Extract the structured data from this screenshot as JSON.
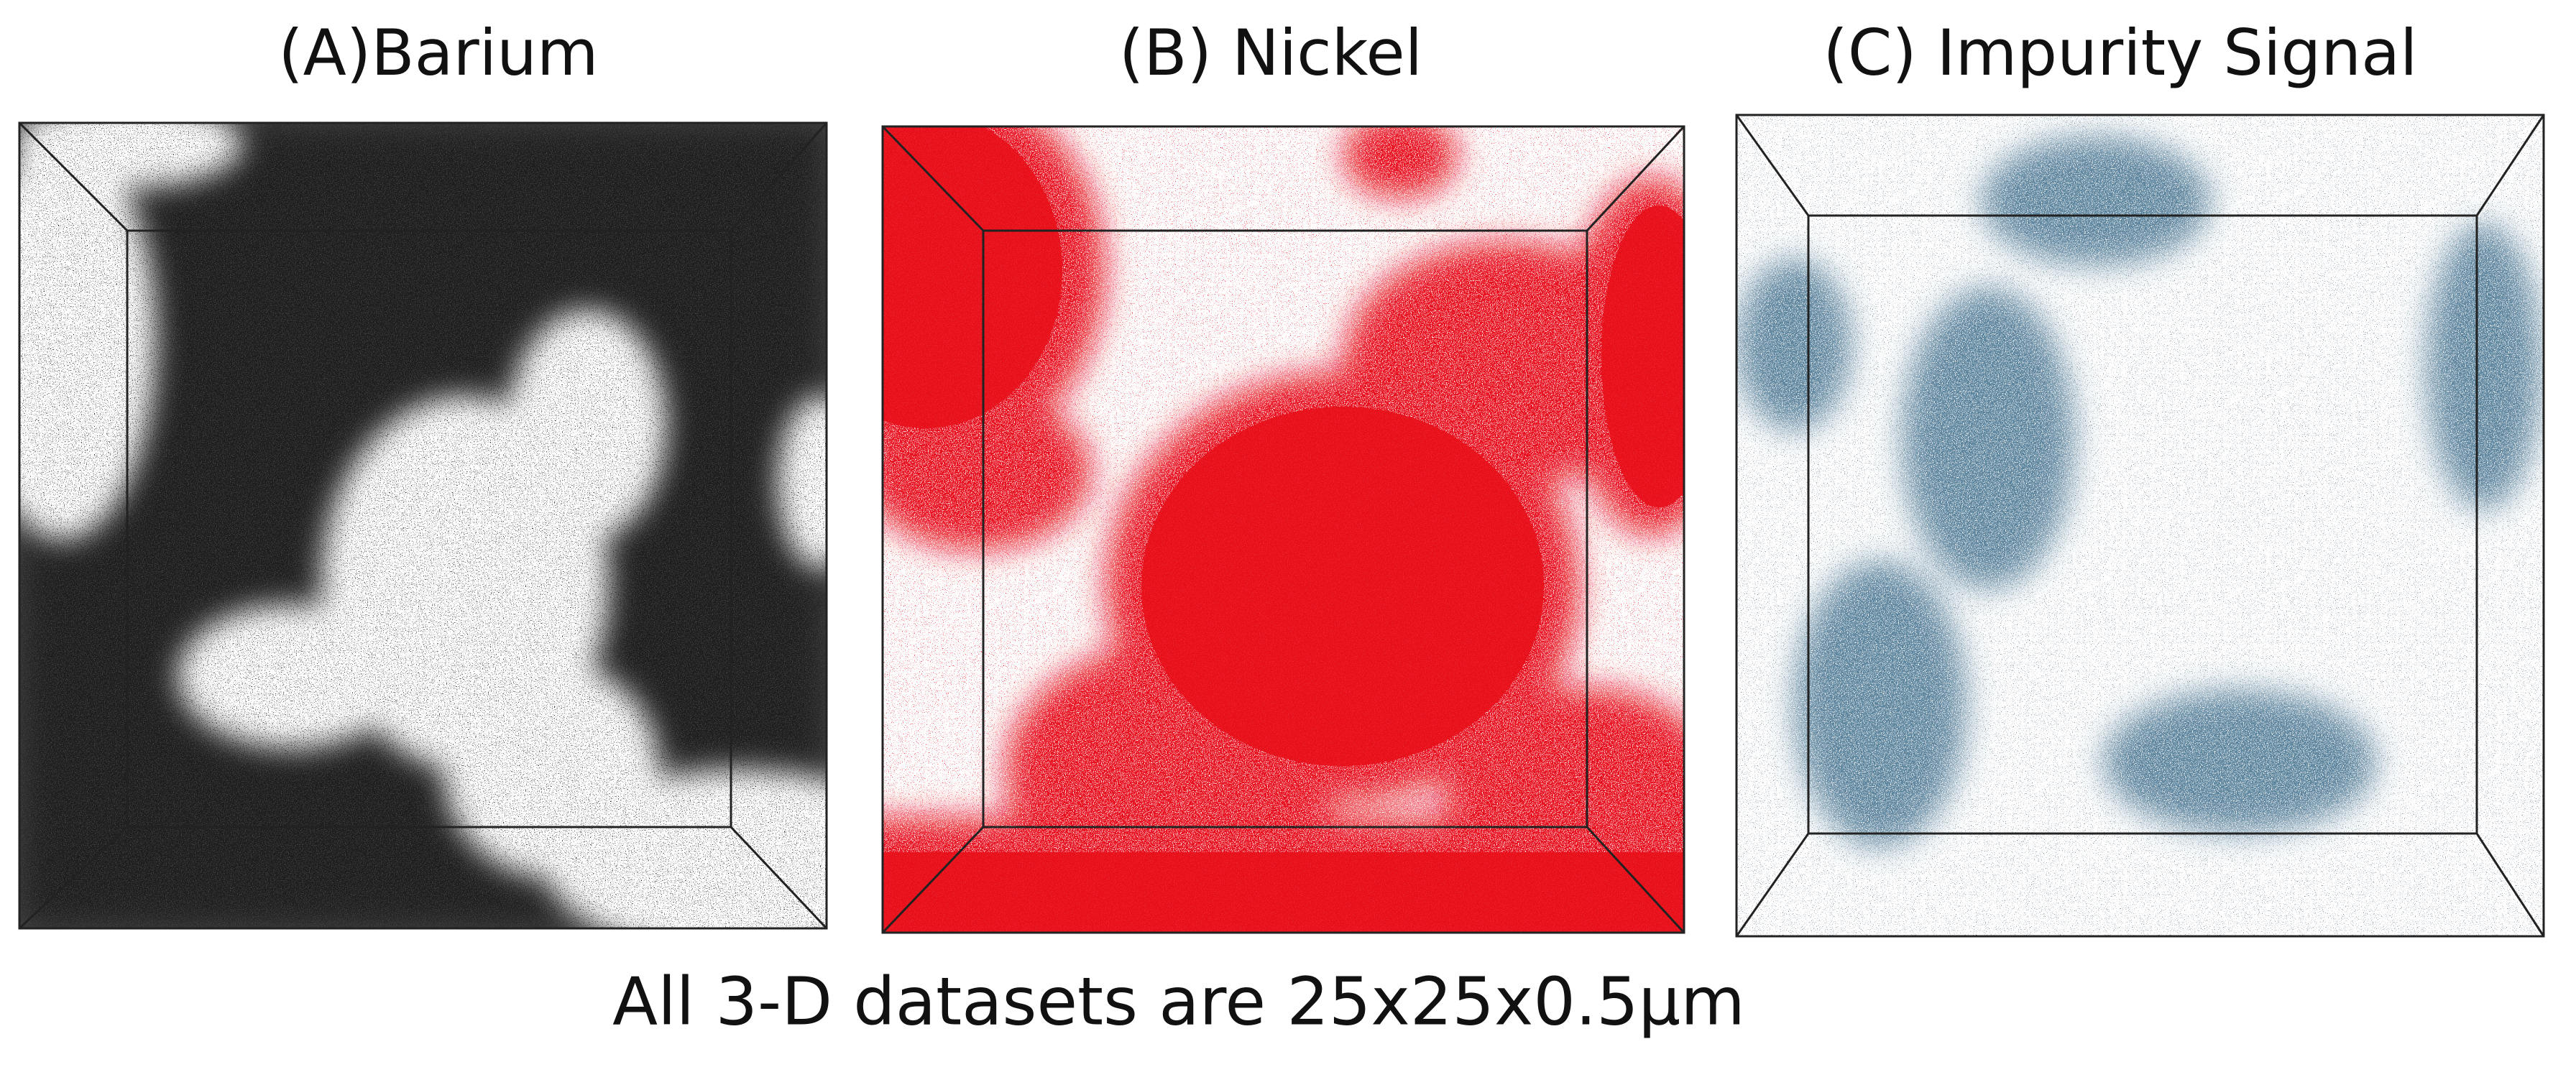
{
  "panels": [
    {
      "title": "(A)Barium"
    },
    {
      "title": "(B) Nickel"
    },
    {
      "title": "(C) Impurity Signal"
    }
  ],
  "caption": "All 3-D datasets are 25x25x0.5µm"
}
